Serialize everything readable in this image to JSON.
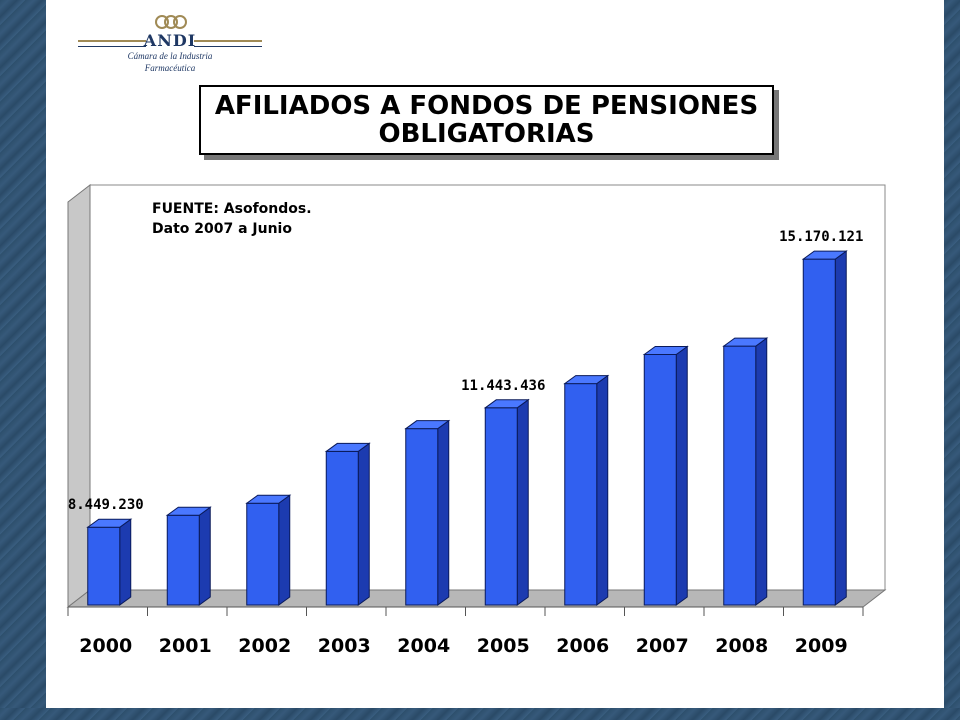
{
  "logo": {
    "name": "ANDI",
    "subtitle_line1": "Cámara de la Industria",
    "subtitle_line2": "Farmacéutica"
  },
  "title": {
    "line1": "AFILIADOS A FONDOS DE PENSIONES",
    "line2": "OBLIGATORIAS"
  },
  "note": {
    "line1": "FUENTE: Asofondos.",
    "line2": "Dato 2007 a Junio"
  },
  "colors": {
    "bar_front": "#3160f0",
    "bar_side": "#1c3bb0",
    "bar_top": "#4a78ff",
    "wall": "#ffffff",
    "floor": "#b7b7b7"
  },
  "chart_data": {
    "type": "bar",
    "categories": [
      "2000",
      "2001",
      "2002",
      "2003",
      "2004",
      "2005",
      "2006",
      "2007",
      "2008",
      "2009"
    ],
    "values": [
      8449230,
      8750000,
      9050000,
      10350000,
      10920000,
      11443436,
      12050000,
      12780000,
      12990000,
      15170121
    ],
    "data_labels": [
      {
        "index": 0,
        "text": "8.449.230"
      },
      {
        "index": 5,
        "text": "11.443.436"
      },
      {
        "index": 9,
        "text": "15.170.121"
      }
    ],
    "ylim": [
      6500000,
      15850000
    ],
    "grid": false,
    "title": "AFILIADOS A FONDOS DE PENSIONES OBLIGATORIAS"
  }
}
